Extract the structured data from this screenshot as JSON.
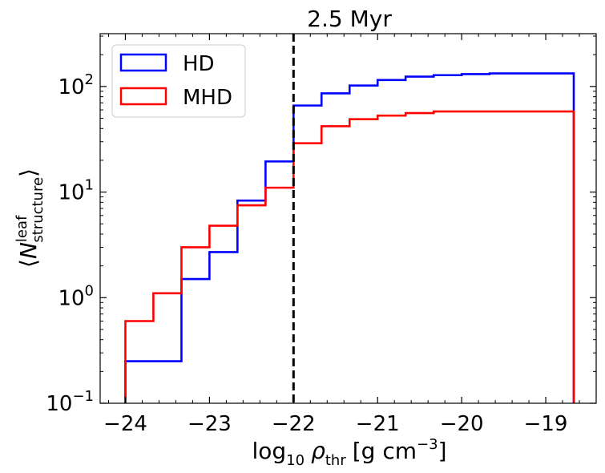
{
  "chart_data": {
    "type": "step-histogram",
    "title": "2.5 Myr",
    "xlabel": {
      "prefix": "log",
      "prefix_sub": "10",
      "symbol": "ρ",
      "symbol_sub": "thr",
      "units": "[g cm",
      "units_sup": "−3",
      "units_end": "]"
    },
    "ylabel": {
      "open": "⟨",
      "symbol": "N",
      "sup": "leaf",
      "sub": "structure",
      "close": "⟩"
    },
    "xlim": [
      -24.3,
      -18.4
    ],
    "ylim_log10": [
      -1,
      2.5
    ],
    "x_ticks": [
      -24,
      -23,
      -22,
      -21,
      -20,
      -19
    ],
    "x_tick_labels": [
      "−24",
      "−23",
      "−22",
      "−21",
      "−20",
      "−19"
    ],
    "y_ticks": [
      {
        "base": "10",
        "exp": "−1",
        "value_log10": -1
      },
      {
        "base": "10",
        "exp": "0",
        "value_log10": 0
      },
      {
        "base": "10",
        "exp": "1",
        "value_log10": 1
      },
      {
        "base": "10",
        "exp": "2",
        "value_log10": 2
      }
    ],
    "vline": {
      "x": -22.0,
      "style": "dashed",
      "color": "#000000"
    },
    "bin_edges": [
      -24.0,
      -23.667,
      -23.333,
      -23.0,
      -22.667,
      -22.333,
      -22.0,
      -21.667,
      -21.333,
      -21.0,
      -20.667,
      -20.333,
      -20.0,
      -19.667,
      -19.333,
      -19.0,
      -18.667
    ],
    "series": [
      {
        "name": "HD",
        "color": "#0000ff",
        "values": [
          0.25,
          0.25,
          1.5,
          2.7,
          8.3,
          19.5,
          66,
          86,
          102,
          115,
          124,
          128,
          131,
          133,
          133,
          133
        ]
      },
      {
        "name": "MHD",
        "color": "#ff0000",
        "values": [
          0.6,
          1.1,
          3.0,
          4.8,
          7.5,
          11.0,
          29,
          42,
          49,
          53,
          56,
          58,
          58,
          58,
          58,
          58
        ]
      }
    ],
    "legend": {
      "position": "top-left",
      "entries": [
        "HD",
        "MHD"
      ]
    }
  }
}
